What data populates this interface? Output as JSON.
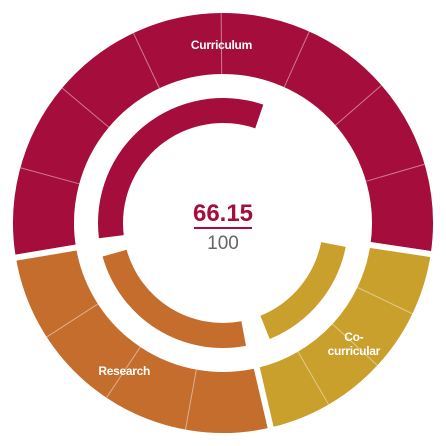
{
  "chart_data": {
    "type": "radial-progress",
    "score": 66.15,
    "score_max": 100,
    "categories": [
      "Curriculum",
      "Co-curricular",
      "Research"
    ],
    "weights": [
      55,
      19,
      26
    ],
    "values": [
      60,
      90,
      96
    ],
    "subsegments": [
      8,
      4,
      4
    ],
    "colors": [
      "#a50d3c",
      "#c9a02b",
      "#c46d2c"
    ],
    "start_angle": 260.5
  }
}
